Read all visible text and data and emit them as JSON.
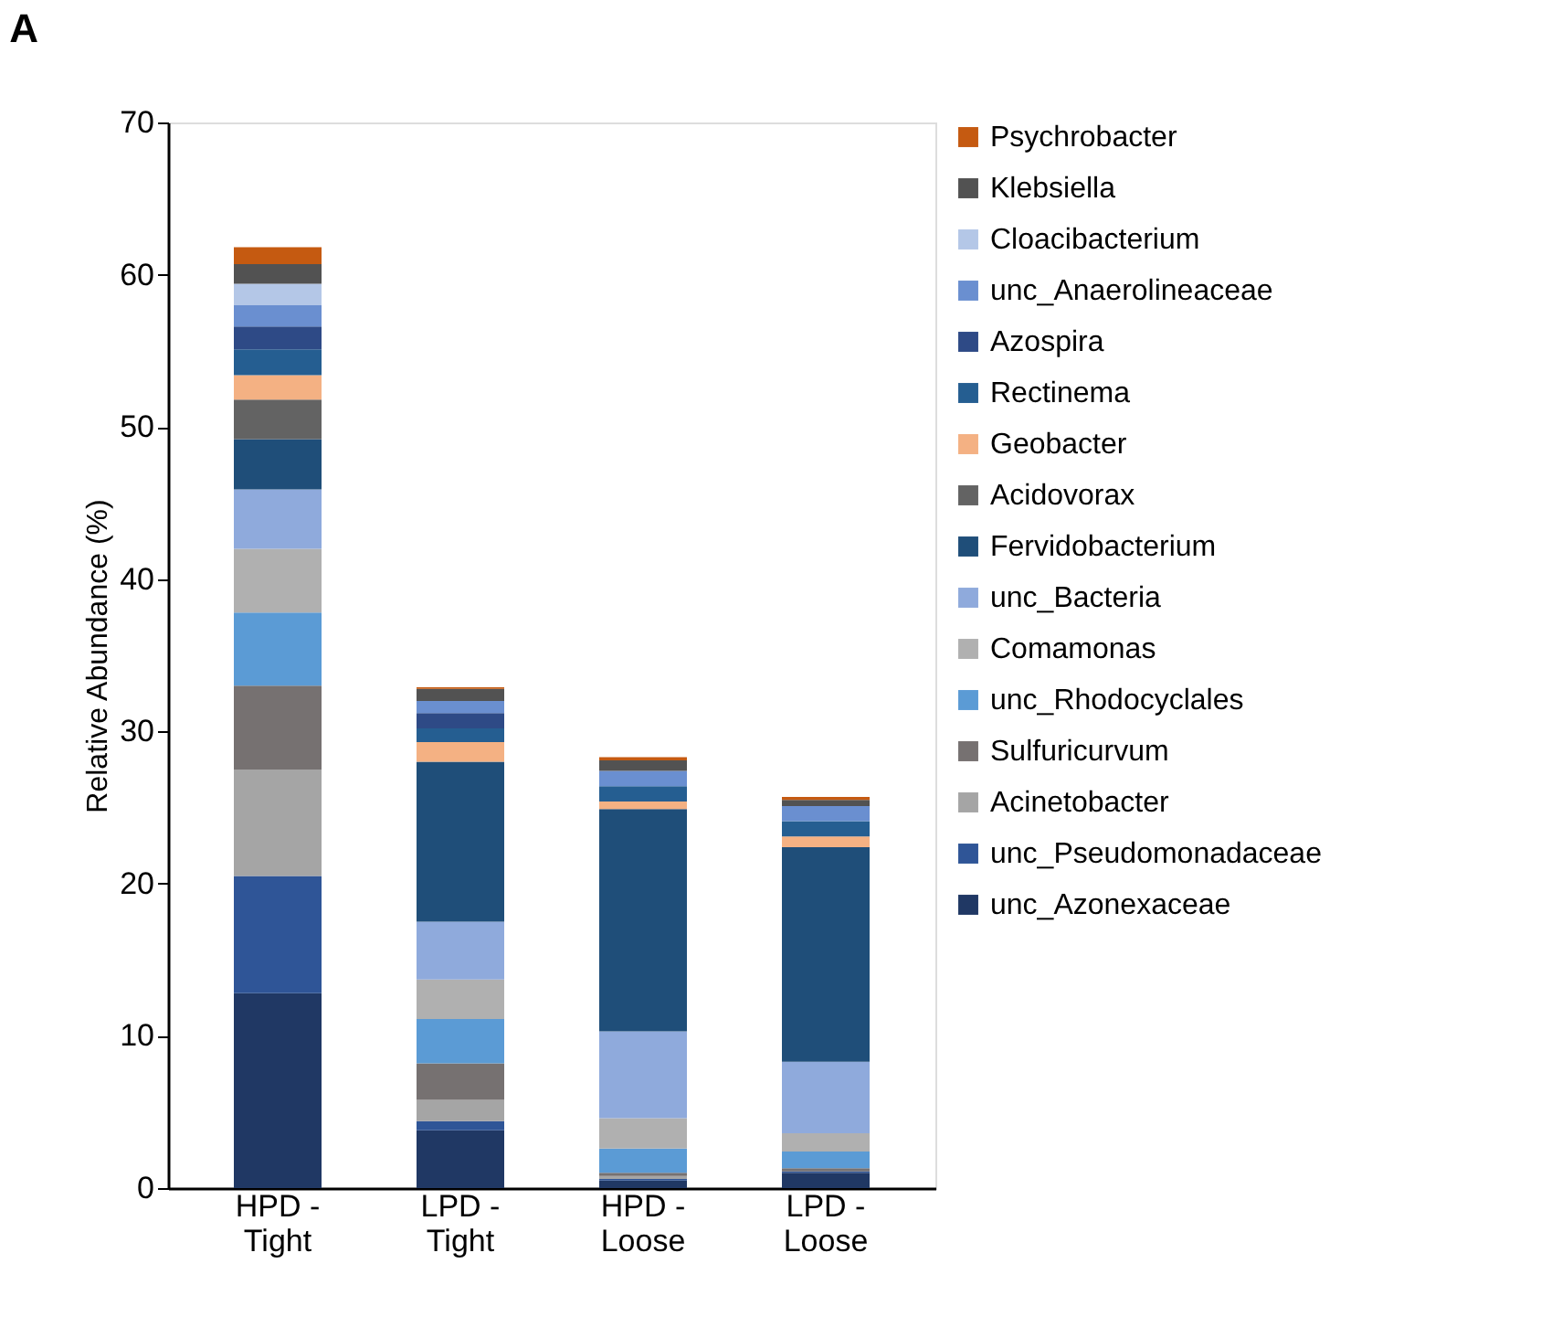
{
  "chart_data": {
    "type": "bar",
    "title": "A",
    "ylabel": "Relative Abundance (%)",
    "stacked": true,
    "legend": "right",
    "grid": false,
    "categories": [
      "HPD - Tight",
      "LPD - Tight",
      "HPD - Loose",
      "LPD - Loose"
    ],
    "ylim": [
      0,
      70
    ],
    "yticks": [
      0,
      10,
      20,
      30,
      40,
      50,
      60,
      70
    ],
    "series": [
      {
        "name": "unc_Azonexaceae",
        "color": "#203864",
        "values": [
          12.8,
          3.8,
          0.5,
          1.0
        ]
      },
      {
        "name": "unc_Pseudomonadaceae",
        "color": "#2f5597",
        "values": [
          7.7,
          0.6,
          0.1,
          0.1
        ]
      },
      {
        "name": "Acinetobacter",
        "color": "#a5a5a5",
        "values": [
          7.0,
          1.4,
          0.2,
          null
        ]
      },
      {
        "name": "Sulfuricurvum",
        "color": "#767171",
        "values": [
          5.5,
          2.4,
          0.2,
          0.2
        ]
      },
      {
        "name": "unc_Rhodocyclales",
        "color": "#5b9bd5",
        "values": [
          4.8,
          2.9,
          1.6,
          1.1
        ]
      },
      {
        "name": "Comamonas",
        "color": "#b0b0b0",
        "values": [
          4.2,
          2.6,
          2.0,
          1.2
        ]
      },
      {
        "name": "unc_Bacteria",
        "color": "#8faadc",
        "values": [
          3.9,
          3.8,
          5.7,
          4.7
        ]
      },
      {
        "name": "Fervidobacterium",
        "color": "#1f4e79",
        "values": [
          3.3,
          10.5,
          14.6,
          14.1
        ]
      },
      {
        "name": "Acidovorax",
        "color": "#636363",
        "values": [
          2.6,
          0,
          0,
          0
        ]
      },
      {
        "name": "Geobacter",
        "color": "#f4b183",
        "values": [
          1.6,
          1.3,
          0.5,
          0.7
        ]
      },
      {
        "name": "Rectinema",
        "color": "#255e91",
        "values": [
          1.7,
          0.9,
          1.0,
          1.0
        ]
      },
      {
        "name": "Azospira",
        "color": "#2e4a86",
        "values": [
          1.5,
          1.0,
          0,
          0
        ]
      },
      {
        "name": "unc_Anaerolineaceae",
        "color": "#6a8fd0",
        "values": [
          1.4,
          0.8,
          1.0,
          1.0
        ]
      },
      {
        "name": "Cloacibacterium",
        "color": "#b4c7e7",
        "values": [
          1.4,
          null,
          0,
          0
        ]
      },
      {
        "name": "Klebsiella",
        "color": "#525252",
        "values": [
          1.3,
          0.8,
          0.7,
          0.4
        ]
      },
      {
        "name": "Psychrobacter",
        "color": "#c55a11",
        "values": [
          1.1,
          0.1,
          0.2,
          0.2
        ]
      }
    ]
  }
}
